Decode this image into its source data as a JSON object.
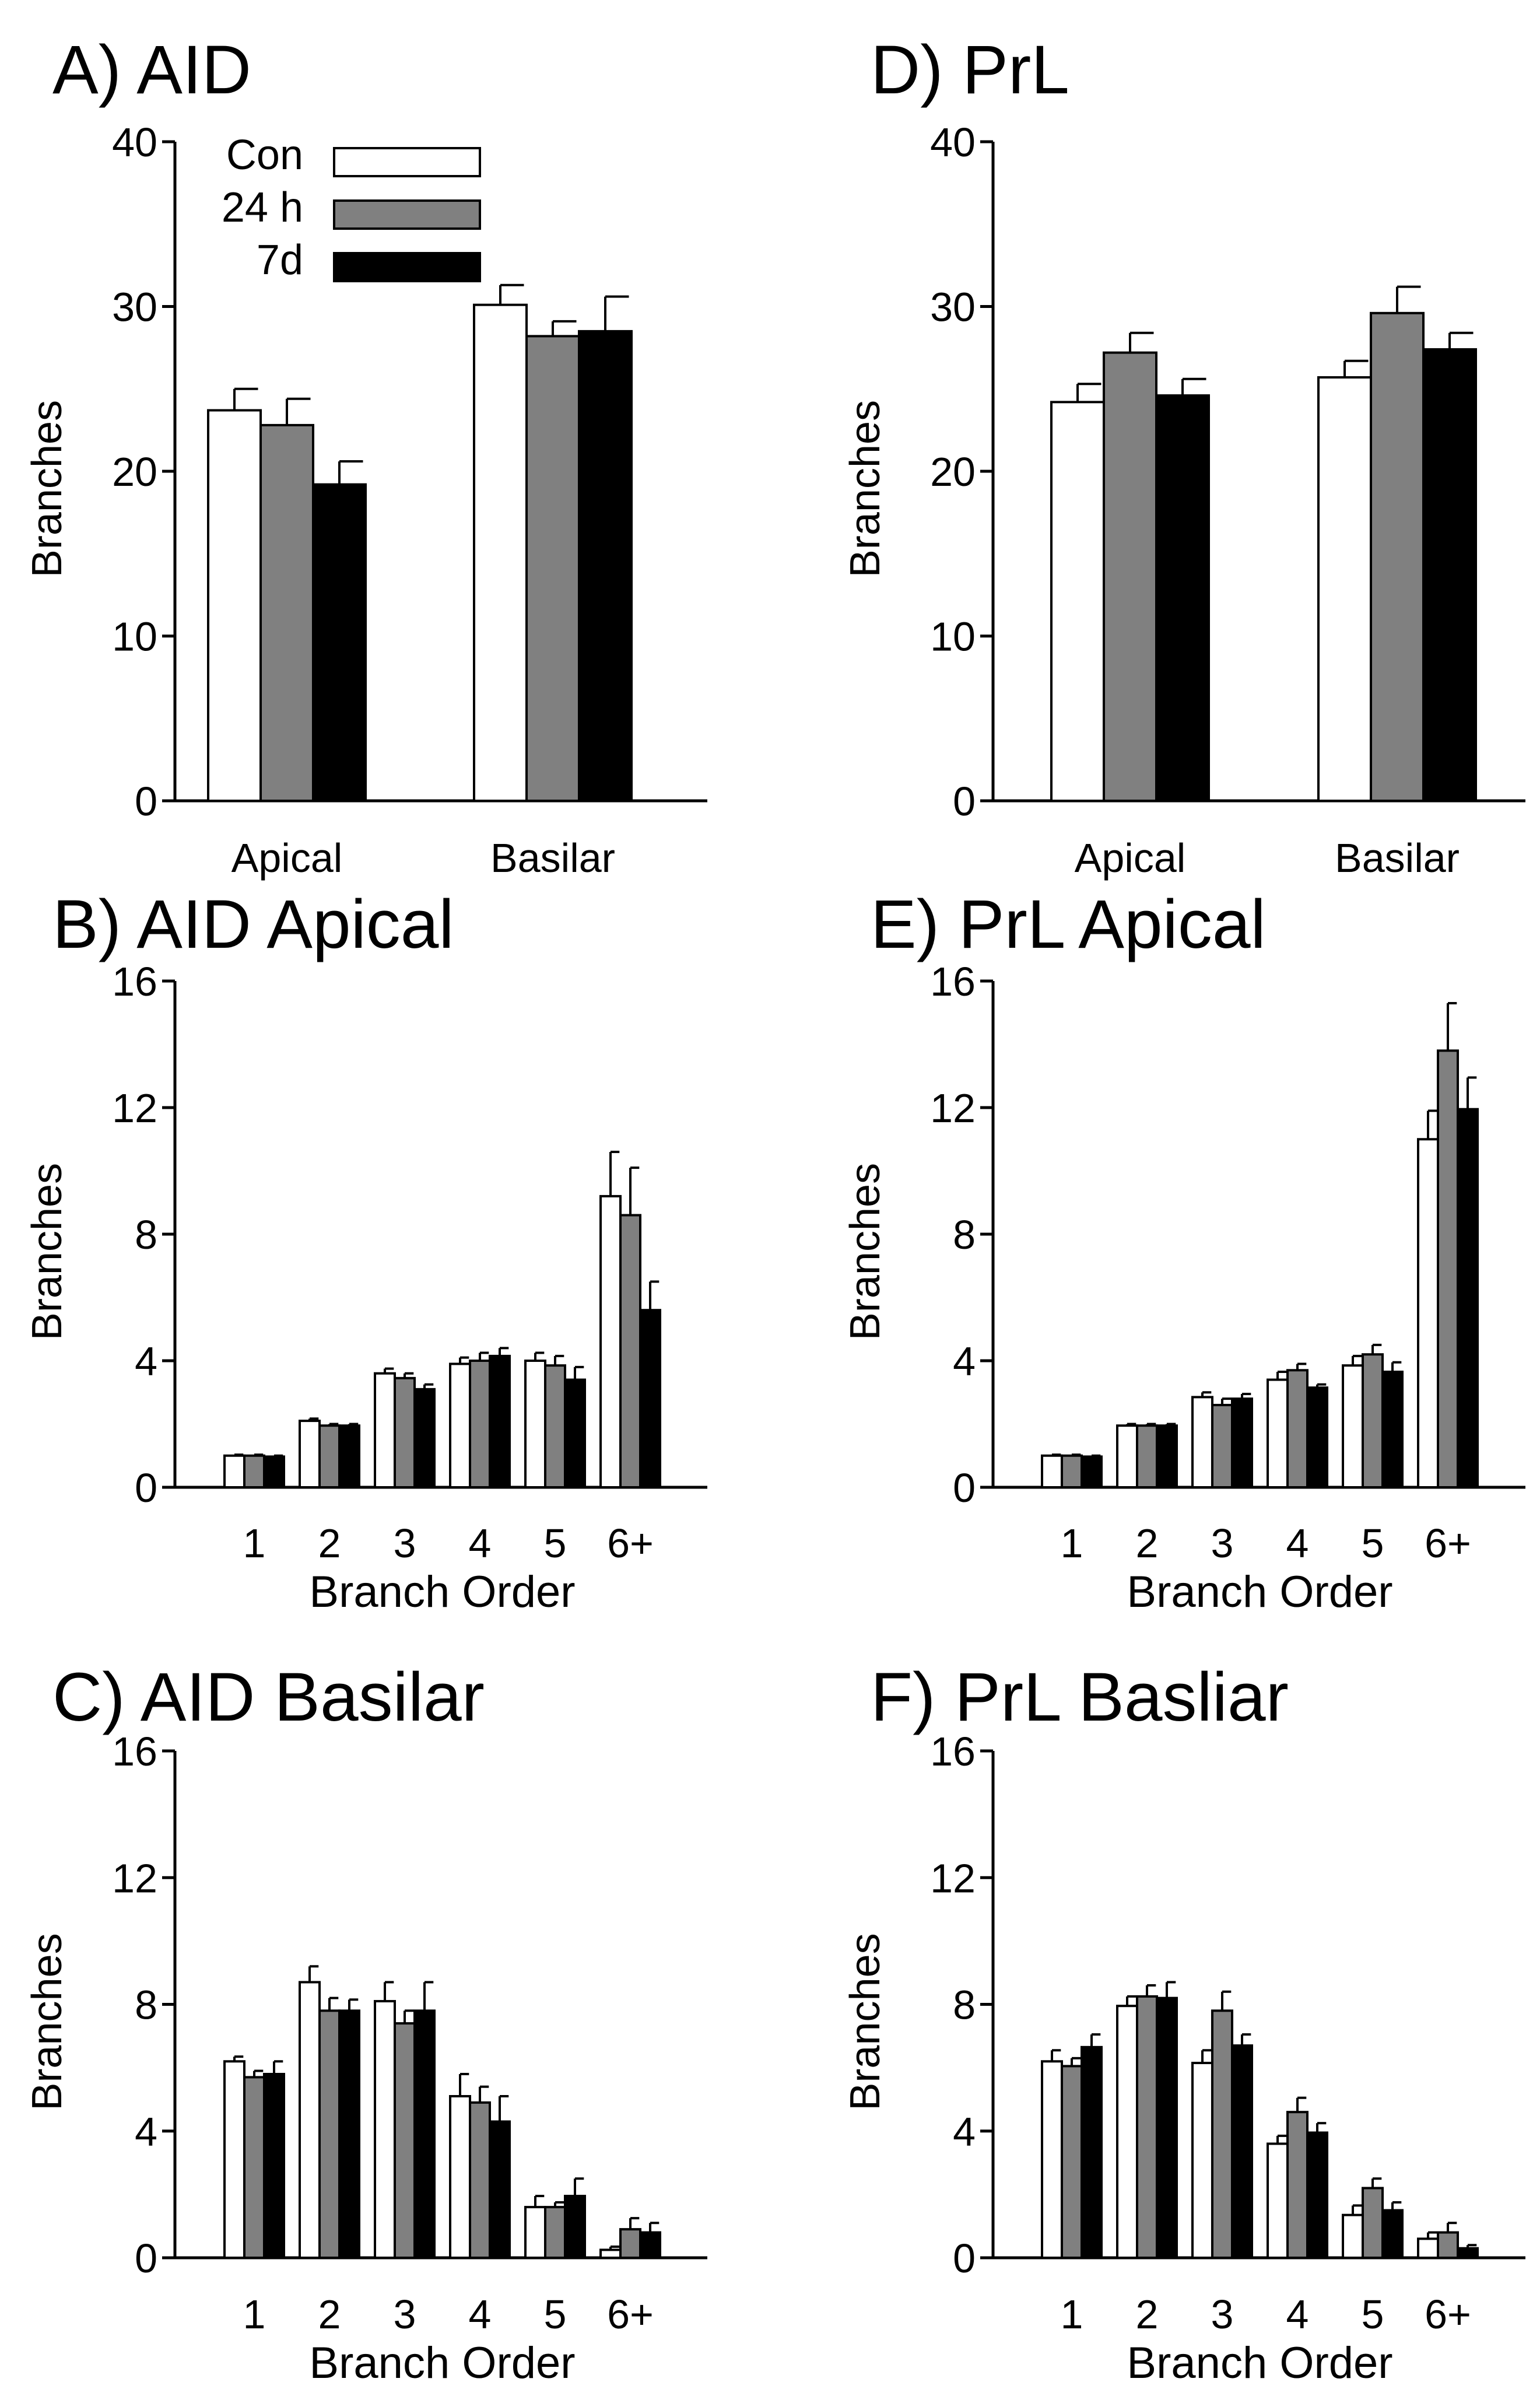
{
  "legend": {
    "entries": [
      {
        "label": "Con",
        "color": "#ffffff"
      },
      {
        "label": "24 h",
        "color": "#808080"
      },
      {
        "label": "7d",
        "color": "#000000"
      }
    ]
  },
  "chart_data": [
    {
      "id": "A",
      "type": "bar",
      "title": "A) AID",
      "ylabel": "Branches",
      "xlabel": "",
      "ylim": [
        0,
        40
      ],
      "yticks": [
        0,
        10,
        20,
        30,
        40
      ],
      "categories": [
        "Apical",
        "Basilar"
      ],
      "series": [
        {
          "name": "Con",
          "color": "#ffffff",
          "values": [
            23.7,
            30.1
          ],
          "errors": [
            1.3,
            1.2
          ]
        },
        {
          "name": "24 h",
          "color": "#808080",
          "values": [
            22.8,
            28.2
          ],
          "errors": [
            1.6,
            0.9
          ]
        },
        {
          "name": "7d",
          "color": "#000000",
          "values": [
            19.2,
            28.5
          ],
          "errors": [
            1.4,
            2.1
          ]
        }
      ]
    },
    {
      "id": "D",
      "type": "bar",
      "title": "D) PrL",
      "ylabel": "Branches",
      "xlabel": "",
      "ylim": [
        0,
        40
      ],
      "yticks": [
        0,
        10,
        20,
        30,
        40
      ],
      "categories": [
        "Apical",
        "Basilar"
      ],
      "series": [
        {
          "name": "Con",
          "color": "#ffffff",
          "values": [
            24.2,
            25.7
          ],
          "errors": [
            1.1,
            1.0
          ]
        },
        {
          "name": "24 h",
          "color": "#808080",
          "values": [
            27.2,
            29.6
          ],
          "errors": [
            1.2,
            1.6
          ]
        },
        {
          "name": "7d",
          "color": "#000000",
          "values": [
            24.6,
            27.4
          ],
          "errors": [
            1.0,
            1.0
          ]
        }
      ]
    },
    {
      "id": "B",
      "type": "bar",
      "title": "B) AID Apical",
      "ylabel": "Branches",
      "xlabel": "Branch Order",
      "ylim": [
        0,
        16
      ],
      "yticks": [
        0,
        4,
        8,
        12,
        16
      ],
      "categories": [
        "1",
        "2",
        "3",
        "4",
        "5",
        "6+"
      ],
      "series": [
        {
          "name": "Con",
          "color": "#ffffff",
          "values": [
            1.0,
            2.1,
            3.6,
            3.9,
            4.0,
            9.2
          ],
          "errors": [
            0.03,
            0.07,
            0.15,
            0.2,
            0.25,
            1.4
          ]
        },
        {
          "name": "24 h",
          "color": "#808080",
          "values": [
            1.0,
            1.95,
            3.45,
            4.0,
            3.85,
            8.6
          ],
          "errors": [
            0.03,
            0.05,
            0.15,
            0.25,
            0.3,
            1.5
          ]
        },
        {
          "name": "7d",
          "color": "#000000",
          "values": [
            0.97,
            1.95,
            3.1,
            4.15,
            3.4,
            5.6
          ],
          "errors": [
            0.03,
            0.05,
            0.15,
            0.25,
            0.4,
            0.9
          ]
        }
      ]
    },
    {
      "id": "E",
      "type": "bar",
      "title": "E) PrL Apical",
      "ylabel": "Branches",
      "xlabel": "Branch Order",
      "ylim": [
        0,
        16
      ],
      "yticks": [
        0,
        4,
        8,
        12,
        16
      ],
      "categories": [
        "1",
        "2",
        "3",
        "4",
        "5",
        "6+"
      ],
      "series": [
        {
          "name": "Con",
          "color": "#ffffff",
          "values": [
            1.0,
            1.95,
            2.85,
            3.4,
            3.85,
            11.0
          ],
          "errors": [
            0.03,
            0.05,
            0.15,
            0.25,
            0.3,
            0.9
          ]
        },
        {
          "name": "24 h",
          "color": "#808080",
          "values": [
            1.0,
            1.95,
            2.6,
            3.7,
            4.2,
            13.8
          ],
          "errors": [
            0.03,
            0.05,
            0.2,
            0.2,
            0.3,
            1.5
          ]
        },
        {
          "name": "7d",
          "color": "#000000",
          "values": [
            0.97,
            1.95,
            2.8,
            3.15,
            3.65,
            11.95
          ],
          "errors": [
            0.03,
            0.05,
            0.15,
            0.1,
            0.3,
            1.0
          ]
        }
      ]
    },
    {
      "id": "C",
      "type": "bar",
      "title": "C) AID Basilar",
      "ylabel": "Branches",
      "xlabel": "Branch Order",
      "ylim": [
        0,
        16
      ],
      "yticks": [
        0,
        4,
        8,
        12,
        16
      ],
      "categories": [
        "1",
        "2",
        "3",
        "4",
        "5",
        "6+"
      ],
      "series": [
        {
          "name": "Con",
          "color": "#ffffff",
          "values": [
            6.2,
            8.7,
            8.1,
            5.1,
            1.6,
            0.25
          ],
          "errors": [
            0.15,
            0.5,
            0.6,
            0.7,
            0.35,
            0.1
          ]
        },
        {
          "name": "24 h",
          "color": "#808080",
          "values": [
            5.7,
            7.8,
            7.4,
            4.9,
            1.6,
            0.9
          ],
          "errors": [
            0.2,
            0.4,
            0.4,
            0.5,
            0.15,
            0.35
          ]
        },
        {
          "name": "7d",
          "color": "#000000",
          "values": [
            5.8,
            7.8,
            7.8,
            4.3,
            1.95,
            0.8
          ],
          "errors": [
            0.4,
            0.35,
            0.9,
            0.8,
            0.55,
            0.3
          ]
        }
      ]
    },
    {
      "id": "F",
      "type": "bar",
      "title": "F) PrL Basliar",
      "ylabel": "Branches",
      "xlabel": "Branch Order",
      "ylim": [
        0,
        16
      ],
      "yticks": [
        0,
        4,
        8,
        12,
        16
      ],
      "categories": [
        "1",
        "2",
        "3",
        "4",
        "5",
        "6+"
      ],
      "series": [
        {
          "name": "Con",
          "color": "#ffffff",
          "values": [
            6.2,
            7.95,
            6.15,
            3.6,
            1.35,
            0.6
          ],
          "errors": [
            0.35,
            0.3,
            0.4,
            0.25,
            0.3,
            0.2
          ]
        },
        {
          "name": "24 h",
          "color": "#808080",
          "values": [
            6.05,
            8.25,
            7.8,
            4.6,
            2.2,
            0.8
          ],
          "errors": [
            0.25,
            0.35,
            0.6,
            0.45,
            0.3,
            0.3
          ]
        },
        {
          "name": "7d",
          "color": "#000000",
          "values": [
            6.65,
            8.2,
            6.7,
            3.95,
            1.5,
            0.3
          ],
          "errors": [
            0.4,
            0.5,
            0.35,
            0.3,
            0.25,
            0.1
          ]
        }
      ]
    }
  ]
}
